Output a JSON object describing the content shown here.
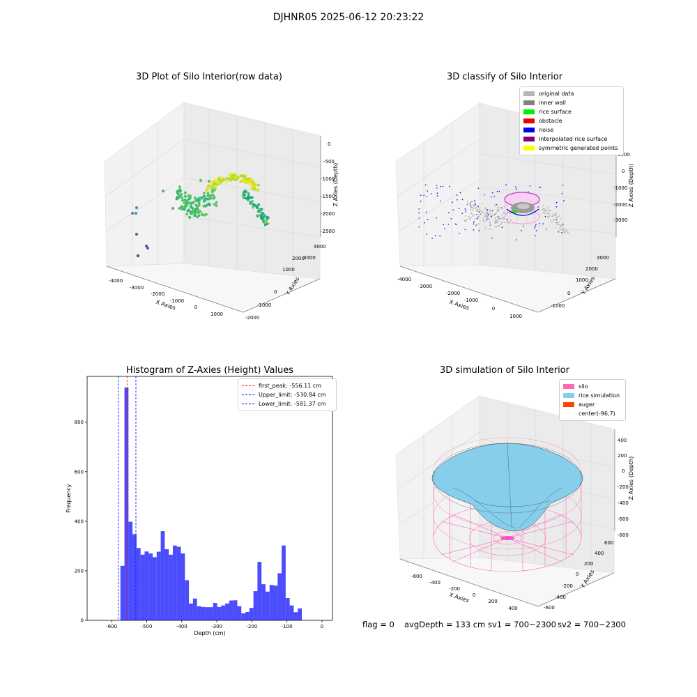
{
  "suptitle": "DJHNR05 2025-06-12 20:23:22",
  "panels": {
    "raw": {
      "title": "3D Plot of Silo Interior(row data)",
      "xlabel": "X Axies",
      "ylabel": "Y Axies",
      "zlabel": "Z Axies (Depth)",
      "xticks": [
        "-4000",
        "-3000",
        "-2000",
        "-1000",
        "0",
        "1000"
      ],
      "yticks": [
        "-2000",
        "-1000",
        "0",
        "1000",
        "2000",
        "3000",
        "4000"
      ],
      "zticks": [
        "0",
        "-500",
        "-1000",
        "-1500",
        "-2000",
        "-2500"
      ]
    },
    "classify": {
      "title": "3D classify of Silo Interior",
      "xlabel": "X Axies",
      "ylabel": "Y Axies",
      "zlabel": "Z Axies (Depth)",
      "xticks": [
        "-4000",
        "-3000",
        "-2000",
        "-1000",
        "0",
        "1000"
      ],
      "yticks": [
        "-1000",
        "0",
        "1000",
        "2000",
        "3000"
      ],
      "zticks": [
        "1000",
        "0",
        "-1000",
        "-2000",
        "-3000"
      ],
      "legend": [
        {
          "label": "original data",
          "color": "#b5b5b5"
        },
        {
          "label": "inner wall",
          "color": "#808080"
        },
        {
          "label": "rice surface",
          "color": "#00ee00"
        },
        {
          "label": "obstacle",
          "color": "#ee0000"
        },
        {
          "label": "noise",
          "color": "#0000ee"
        },
        {
          "label": "interpolated rice surface",
          "color": "#800080"
        },
        {
          "label": "symmetric generated points",
          "color": "#ffff00"
        }
      ]
    },
    "simulation": {
      "title": "3D simulation of Silo Interior",
      "xlabel": "X Axies",
      "ylabel": "Y Axies",
      "zlabel": "Z Axies (Depth)",
      "xticks": [
        "-600",
        "-400",
        "-200",
        "0",
        "200",
        "400"
      ],
      "yticks": [
        "-600",
        "-400",
        "-200",
        "0",
        "200",
        "400",
        "600"
      ],
      "zticks": [
        "400",
        "200",
        "0",
        "-200",
        "-400",
        "-600",
        "-800"
      ],
      "legend": [
        {
          "label": "silo",
          "color": "#ff69b4"
        },
        {
          "label": "rice simulation",
          "color": "#87ceeb"
        },
        {
          "label": "auger",
          "color": "#ff4500"
        },
        {
          "label": "center(-96,7)",
          "color": ""
        }
      ]
    }
  },
  "chart_data": {
    "type": "bar",
    "title": "Histogram of Z-Axies (Height) Values",
    "xlabel": "Depth (cm)",
    "ylabel": "Frequency",
    "xlim": [
      -670,
      30
    ],
    "ylim": [
      0,
      985
    ],
    "xticks": [
      -600,
      -500,
      -400,
      -300,
      -200,
      -100,
      0
    ],
    "yticks": [
      0,
      200,
      400,
      600,
      800
    ],
    "bar_color": "#0000ff",
    "bin_edges_start": -575,
    "bin_width": 11.5,
    "values": [
      220,
      940,
      398,
      348,
      292,
      265,
      278,
      270,
      255,
      277,
      360,
      287,
      265,
      302,
      297,
      270,
      162,
      68,
      88,
      57,
      54,
      53,
      53,
      70,
      54,
      60,
      68,
      80,
      81,
      57,
      28,
      34,
      50,
      118,
      236,
      146,
      116,
      143,
      140,
      190,
      302,
      90,
      60,
      33,
      48
    ],
    "vlines": [
      {
        "label": "first_peak: -556.11 cm",
        "x": -556.11,
        "color": "#ff0000"
      },
      {
        "label": "Upper_limit: -530.84 cm",
        "x": -530.84,
        "color": "#0000ff"
      },
      {
        "label": "Lower_limit: -581.37 cm",
        "x": -581.37,
        "color": "#0000ff"
      }
    ],
    "legend_position": "top-right"
  },
  "status": {
    "flag": "flag = 0",
    "avg_depth": "avgDepth = 133 cm",
    "sv1": "sv1 = 700~2300",
    "sv2": "sv2 = 700~2300"
  }
}
